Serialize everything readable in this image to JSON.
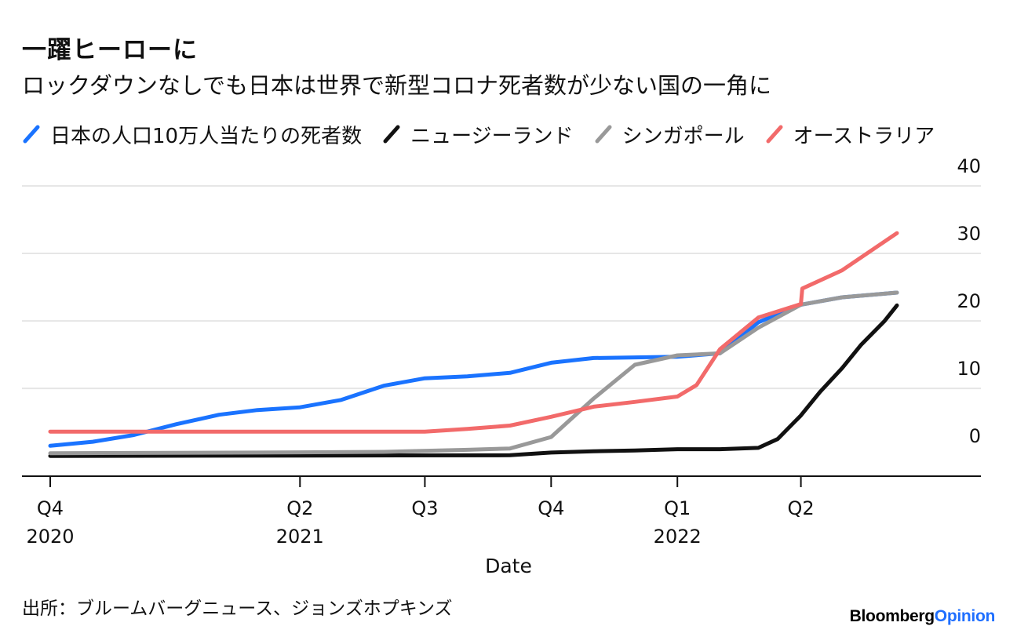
{
  "header": {
    "title": "一躍ヒーローに",
    "subtitle": "ロックダウンなしでも日本は世界で新型コロナ死者数が少ない国の一角に"
  },
  "footer": {
    "source": "出所：ブルームバーグニュース、ジョンズホプキンズ",
    "brand_part1": "Bloomberg",
    "brand_part2": "Opinion"
  },
  "chart_data": {
    "type": "line",
    "title": "一躍ヒーローに",
    "subtitle": "ロックダウンなしでも日本は世界で新型コロナ死者数が少ない国の一角に",
    "xlabel": "Date",
    "ylabel": "",
    "ylim": [
      -3,
      40
    ],
    "y_ticks": [
      0,
      10,
      20,
      30,
      40
    ],
    "x_range": [
      "2020-10-01",
      "2022-06-30"
    ],
    "x_ticks": [
      {
        "date": "2020-10-01",
        "quarter": "Q4",
        "year": "2020"
      },
      {
        "date": "2021-04-01",
        "quarter": "Q2",
        "year": "2021"
      },
      {
        "date": "2021-07-01",
        "quarter": "Q3",
        "year": ""
      },
      {
        "date": "2021-10-01",
        "quarter": "Q4",
        "year": ""
      },
      {
        "date": "2022-01-01",
        "quarter": "Q1",
        "year": "2022"
      },
      {
        "date": "2022-04-01",
        "quarter": "Q2",
        "year": ""
      }
    ],
    "y_axis_position": "right",
    "grid": true,
    "legend_position": "top",
    "series": [
      {
        "name": "日本の人口10万人当たりの死者数",
        "color": "#1a73ff",
        "points": [
          [
            "2020-10-01",
            1.5
          ],
          [
            "2020-11-01",
            2.1
          ],
          [
            "2020-12-01",
            3.1
          ],
          [
            "2021-01-01",
            4.7
          ],
          [
            "2021-02-01",
            6.1
          ],
          [
            "2021-03-01",
            6.8
          ],
          [
            "2021-04-01",
            7.2
          ],
          [
            "2021-05-01",
            8.3
          ],
          [
            "2021-06-01",
            10.4
          ],
          [
            "2021-07-01",
            11.5
          ],
          [
            "2021-08-01",
            11.8
          ],
          [
            "2021-09-01",
            12.3
          ],
          [
            "2021-10-01",
            13.8
          ],
          [
            "2021-11-01",
            14.5
          ],
          [
            "2021-12-01",
            14.6
          ],
          [
            "2022-01-01",
            14.7
          ],
          [
            "2022-02-01",
            15.2
          ],
          [
            "2022-03-01",
            19.8
          ],
          [
            "2022-04-01",
            22.4
          ],
          [
            "2022-05-01",
            23.5
          ],
          [
            "2022-06-10",
            24.2
          ]
        ]
      },
      {
        "name": "ニュージーランド",
        "color": "#111111",
        "points": [
          [
            "2020-10-01",
            0.0
          ],
          [
            "2021-09-01",
            0.1
          ],
          [
            "2021-10-01",
            0.5
          ],
          [
            "2021-11-01",
            0.7
          ],
          [
            "2021-12-01",
            0.8
          ],
          [
            "2022-01-01",
            1.0
          ],
          [
            "2022-02-01",
            1.0
          ],
          [
            "2022-03-01",
            1.2
          ],
          [
            "2022-03-15",
            2.5
          ],
          [
            "2022-04-01",
            6.0
          ],
          [
            "2022-04-15",
            9.5
          ],
          [
            "2022-05-01",
            13.0
          ],
          [
            "2022-05-15",
            16.5
          ],
          [
            "2022-06-01",
            20.0
          ],
          [
            "2022-06-10",
            22.3
          ]
        ]
      },
      {
        "name": "シンガポール",
        "color": "#999999",
        "points": [
          [
            "2020-10-01",
            0.4
          ],
          [
            "2021-03-01",
            0.5
          ],
          [
            "2021-06-01",
            0.6
          ],
          [
            "2021-08-01",
            0.9
          ],
          [
            "2021-09-01",
            1.1
          ],
          [
            "2021-10-01",
            2.8
          ],
          [
            "2021-11-01",
            8.5
          ],
          [
            "2021-12-01",
            13.5
          ],
          [
            "2022-01-01",
            14.9
          ],
          [
            "2022-02-01",
            15.2
          ],
          [
            "2022-03-01",
            19.0
          ],
          [
            "2022-04-01",
            22.4
          ],
          [
            "2022-05-01",
            23.5
          ],
          [
            "2022-06-10",
            24.2
          ]
        ]
      },
      {
        "name": "オーストラリア",
        "color": "#f26a6a",
        "points": [
          [
            "2020-10-01",
            3.6
          ],
          [
            "2021-07-01",
            3.6
          ],
          [
            "2021-08-01",
            4.0
          ],
          [
            "2021-09-01",
            4.5
          ],
          [
            "2021-10-01",
            5.8
          ],
          [
            "2021-11-01",
            7.3
          ],
          [
            "2021-12-01",
            8.0
          ],
          [
            "2022-01-01",
            8.8
          ],
          [
            "2022-01-15",
            10.5
          ],
          [
            "2022-02-01",
            15.8
          ],
          [
            "2022-03-01",
            20.5
          ],
          [
            "2022-04-01",
            22.5
          ],
          [
            "2022-04-02",
            24.8
          ],
          [
            "2022-05-01",
            27.5
          ],
          [
            "2022-06-10",
            33.0
          ]
        ]
      }
    ]
  }
}
